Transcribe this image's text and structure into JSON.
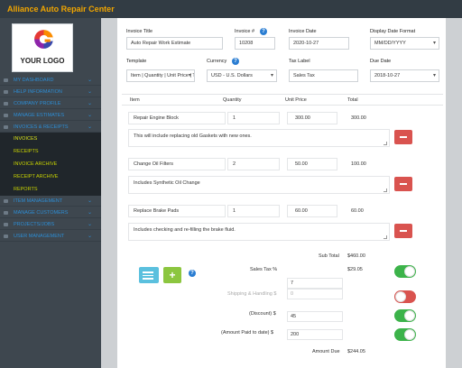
{
  "app": {
    "title": "Alliance Auto Repair Center"
  },
  "logo": {
    "text": "YOUR LOGO"
  },
  "sidebar": {
    "items": [
      {
        "label": "MY DASHBOARD"
      },
      {
        "label": "HELP INFORMATION"
      },
      {
        "label": "COMPANY PROFILE"
      },
      {
        "label": "MANAGE ESTIMATES"
      },
      {
        "label": "INVOICES & RECEIPTS"
      }
    ],
    "subitems": [
      {
        "label": "INVOICES"
      },
      {
        "label": "RECEIPTS"
      },
      {
        "label": "INVOICE ARCHIVE"
      },
      {
        "label": "RECEIPT ARCHIVE"
      },
      {
        "label": "REPORTS"
      }
    ],
    "items_after": [
      {
        "label": "ITEM MANAGEMENT"
      },
      {
        "label": "MANAGE CUSTOMERS"
      },
      {
        "label": "PROJECTS/JOBS"
      },
      {
        "label": "USER MANAGEMENT"
      }
    ]
  },
  "form": {
    "invoice_title": {
      "label": "Invoice Title",
      "value": "Auto Repair Work  Estimate"
    },
    "invoice_number": {
      "label": "Invoice #",
      "value": "10208"
    },
    "invoice_date": {
      "label": "Invoice Date",
      "value": "2020-10-27"
    },
    "date_format": {
      "label": "Display Date Format",
      "value": "MM/DD/YYYY"
    },
    "template": {
      "label": "Template",
      "value": "Item | Quantity | Unit Price | Total"
    },
    "currency": {
      "label": "Currency",
      "value": "USD - U.S. Dollars"
    },
    "tax_label": {
      "label": "Tax Label",
      "value": "Sales Tax"
    },
    "due_date": {
      "label": "Due Date",
      "value": "2018-10-27"
    }
  },
  "table": {
    "headers": {
      "item": "Item",
      "quantity": "Quantity",
      "unit_price": "Unit Price",
      "total": "Total"
    },
    "rows": [
      {
        "item": "Repair Engine Block",
        "quantity": "1",
        "unit_price": "300.00",
        "total": "300.00",
        "description": "This will include replacing old Gaskets with new ones."
      },
      {
        "item": "Change Oil Filters",
        "quantity": "2",
        "unit_price": "50.00",
        "total": "100.00",
        "description": "Includes Synthetic Oil Change"
      },
      {
        "item": "Replace Brake Pads",
        "quantity": "1",
        "unit_price": "60.00",
        "total": "60.00",
        "description": "Includes checking and re-filling the brake fluid."
      }
    ]
  },
  "totals": {
    "sub_total": {
      "label": "Sub Total",
      "value": "$460.00"
    },
    "sales_tax": {
      "label": "Sales Tax %",
      "input": "7",
      "value": "$29.05",
      "enabled": true
    },
    "shipping": {
      "label": "Shipping & Handling $",
      "input": "0",
      "enabled": false
    },
    "discount": {
      "label": "(Discount) $",
      "input": "45",
      "enabled": true
    },
    "amount_paid": {
      "label": "(Amount Paid to date) $",
      "input": "200",
      "enabled": true
    },
    "amount_due": {
      "label": "Amount Due",
      "value": "$244.05"
    }
  },
  "colors": {
    "brand_orange": "#f0a500",
    "nav_blue": "#2d8dd4",
    "submenu_yellow": "#c9d400",
    "delete_red": "#d9534f",
    "toggle_green": "#3cb34a"
  },
  "icons": {
    "help": "question-circle-icon",
    "delete": "minus-icon",
    "list": "list-icon",
    "add": "plus-icon"
  }
}
